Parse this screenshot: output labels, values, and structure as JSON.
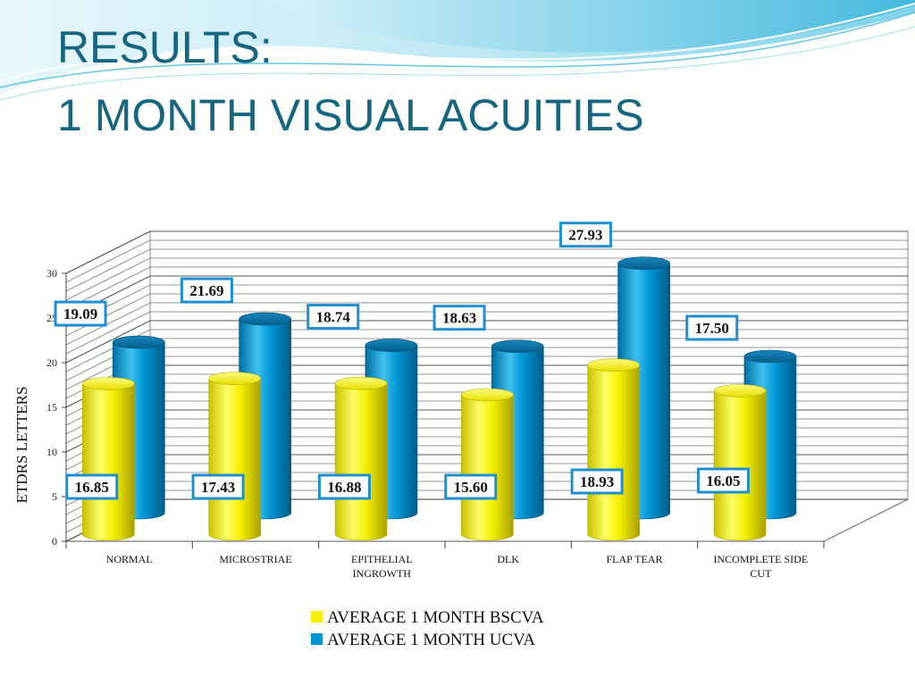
{
  "slide": {
    "title_line_1": "RESULTS:",
    "title_line_2": "1 MONTH VISUAL ACUITIES"
  },
  "chart_data": {
    "type": "bar",
    "title": "",
    "xlabel": "",
    "ylabel": "ETDRS   LETTERS",
    "ylim": [
      0,
      30
    ],
    "yticks": [
      0,
      5,
      10,
      15,
      20,
      25,
      30
    ],
    "grid": true,
    "legend_position": "bottom",
    "categories": [
      "NORMAL",
      "MICROSTRIAE",
      "EPITHELIAL INGROWTH",
      "DLK",
      "FLAP TEAR",
      "INCOMPLETE SIDE CUT"
    ],
    "category_lines": [
      [
        "NORMAL"
      ],
      [
        "MICROSTRIAE"
      ],
      [
        "EPITHELIAL",
        "INGROWTH"
      ],
      [
        "DLK"
      ],
      [
        "FLAP TEAR"
      ],
      [
        "INCOMPLETE SIDE",
        "CUT"
      ]
    ],
    "series": [
      {
        "name": "AVERAGE 1 MONTH BSCVA",
        "color": "#f5ef00",
        "values": [
          16.85,
          17.43,
          16.88,
          15.6,
          18.93,
          16.05
        ],
        "labels": [
          "16.85",
          "17.43",
          "16.88",
          "15.60",
          "18.93",
          "16.05"
        ]
      },
      {
        "name": "AVERAGE 1 MONTH UCVA",
        "color": "#0096d6",
        "values": [
          19.09,
          21.69,
          18.74,
          18.63,
          27.93,
          17.5
        ],
        "labels": [
          "19.09",
          "21.69",
          "18.74",
          "18.63",
          "27.93",
          "17.50"
        ]
      }
    ]
  }
}
